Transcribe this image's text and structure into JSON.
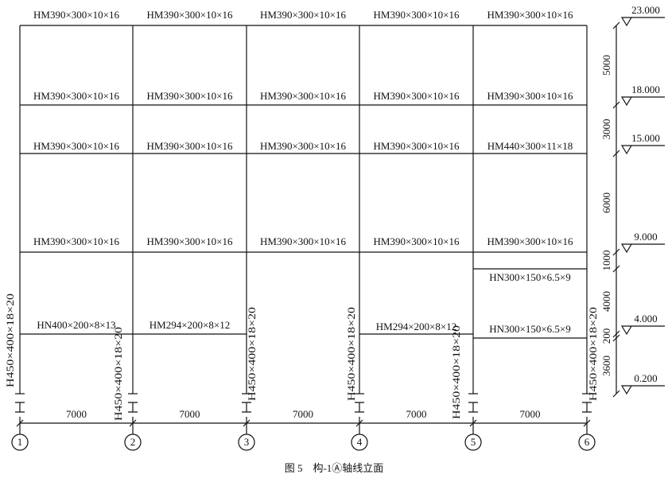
{
  "beams": [
    "HM390×300×10×16",
    "HM390×300×10×16",
    "HM390×300×10×16",
    "HM390×300×10×16",
    "HM390×300×10×16",
    "HM390×300×10×16",
    "HM390×300×10×16",
    "HM390×300×10×16",
    "HM390×300×10×16",
    "HM390×300×10×16",
    "HM390×300×10×16",
    "HM390×300×10×16",
    "HM390×300×10×16",
    "HM390×300×10×16",
    "HM440×300×11×18",
    "HM390×300×10×16",
    "HM390×300×10×16",
    "HM390×300×10×16",
    "HM390×300×10×16",
    "HM390×300×10×16",
    "HN300×150×6.5×9",
    "HN400×200×8×13",
    "HM294×200×8×12",
    "HM294×200×8×12",
    "HN300×150×6.5×9"
  ],
  "columns": [
    "H450×400×18×20",
    "H450×400×18×20",
    "H450×400×18×20",
    "H450×400×18×20",
    "H450×400×18×20",
    "H450×400×18×20"
  ],
  "spans": [
    "7000",
    "7000",
    "7000",
    "7000",
    "7000"
  ],
  "axes": [
    "1",
    "2",
    "3",
    "4",
    "5",
    "6"
  ],
  "heights": [
    "5000",
    "3000",
    "6000",
    "1000",
    "4000",
    "200",
    "3600"
  ],
  "elevations": [
    "23.000",
    "18.000",
    "15.000",
    "9.000",
    "4.000",
    "0.200"
  ],
  "caption": "图 5　构-1Ⓐ轴线立面"
}
